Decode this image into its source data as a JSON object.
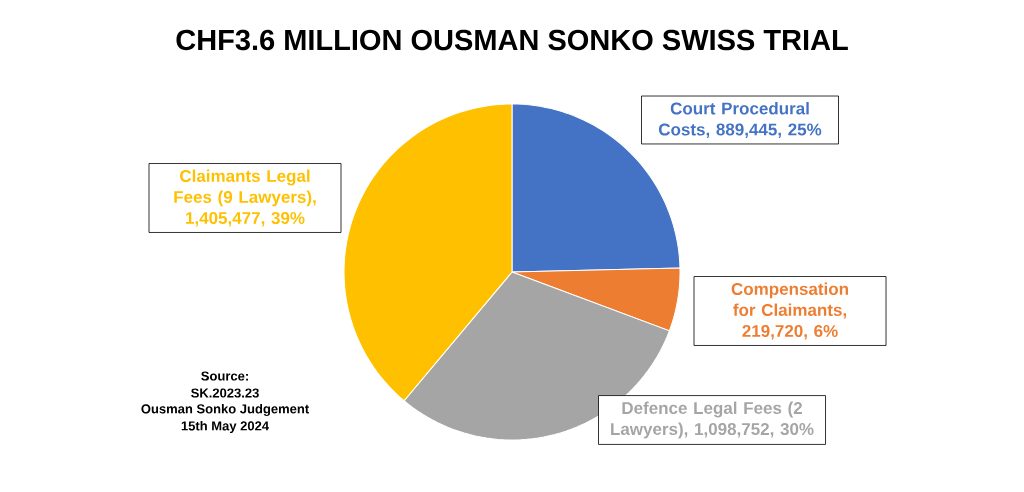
{
  "chart_data": {
    "type": "pie",
    "title": "CHF3.6 MILLION OUSMAN SONKO SWISS TRIAL",
    "categories": [
      "Court Procedural Costs, 889,445, 25%",
      "Compensation for Claimants, 219,720, 6%",
      "Defence Legal Fees (2 Lawyers), 1,098,752, 30%",
      "Claimants Legal Fees (9 Lawyers), 1,405,477, 39%"
    ],
    "values": [
      889445,
      219720,
      1098752,
      1405477
    ],
    "colors": [
      "#4472c4",
      "#ed7d31",
      "#a5a5a5",
      "#ffc000"
    ],
    "annotations": [
      "Source:",
      "SK.2023.23",
      "Ousman Sonko Judgement",
      "15th May 2024"
    ]
  }
}
